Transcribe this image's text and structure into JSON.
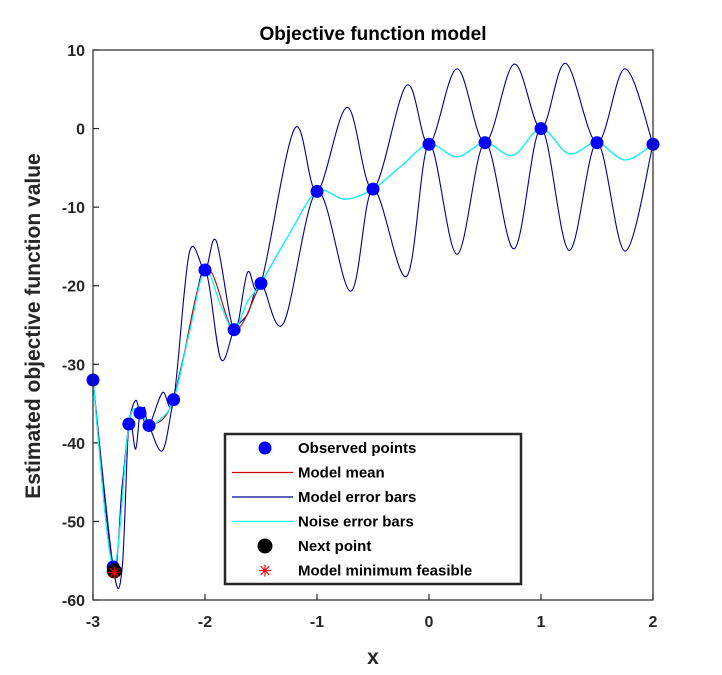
{
  "chart_data": {
    "type": "line",
    "title": "Objective function model",
    "xlabel": "x",
    "ylabel": "Estimated objective function value",
    "xlim": [
      -3,
      2
    ],
    "ylim": [
      -60,
      10
    ],
    "xticks": [
      -3,
      -2,
      -1,
      0,
      1,
      2
    ],
    "yticks": [
      -60,
      -50,
      -40,
      -30,
      -20,
      -10,
      0,
      10
    ],
    "legend_position": "bottom-center",
    "colors": {
      "observed": "#0000ff",
      "model_mean": "#c00000",
      "model_error": "#00008b",
      "noise_error": "#00ffff",
      "next_point": "#000000",
      "model_min": "#ff0000"
    },
    "legend": [
      {
        "label": "Observed points",
        "marker": "dot"
      },
      {
        "label": "Model mean",
        "marker": "line-mean"
      },
      {
        "label": "Model error bars",
        "marker": "line-error"
      },
      {
        "label": "Noise error bars",
        "marker": "line-noise"
      },
      {
        "label": "Next point",
        "marker": "black-dot"
      },
      {
        "label": "Model minimum feasible",
        "marker": "star"
      }
    ],
    "observed_points": {
      "x": [
        -3,
        -2.82,
        -2.68,
        -2.58,
        -2.5,
        -2.28,
        -2.0,
        -1.74,
        -1.5,
        -1.0,
        -0.5,
        0,
        0.5,
        1.0,
        1.5,
        2.0
      ],
      "y": [
        -32,
        -55.8,
        -37.6,
        -36.2,
        -37.8,
        -34.5,
        -18,
        -25.6,
        -19.7,
        -8,
        -7.7,
        -2,
        -1.8,
        0,
        -1.8,
        -2
      ]
    },
    "model_mean": {
      "x": [
        -3,
        -2.82,
        -2.68,
        -2.58,
        -2.5,
        -2.28,
        -2.0,
        -1.74,
        -1.5,
        -1.25,
        -1.0,
        -0.75,
        -0.5,
        -0.25,
        0,
        0.25,
        0.5,
        0.75,
        1.0,
        1.25,
        1.5,
        1.75,
        2.0
      ],
      "y": [
        -32,
        -55.8,
        -37.6,
        -36.2,
        -37.8,
        -34.5,
        -18,
        -25.6,
        -19.7,
        -13.5,
        -8,
        -9,
        -7.7,
        -4.8,
        -2,
        -3.6,
        -1.8,
        -3.4,
        0,
        -3.2,
        -1.8,
        -4,
        -2
      ]
    },
    "model_error_upper": {
      "x": [
        -3,
        -2.82,
        -2.74,
        -2.68,
        -2.62,
        -2.58,
        -2.54,
        -2.5,
        -2.38,
        -2.28,
        -2.14,
        -2.0,
        -1.9,
        -1.74,
        -1.62,
        -1.5,
        -1.2,
        -1.0,
        -0.73,
        -0.5,
        -0.2,
        0,
        0.25,
        0.5,
        0.76,
        1.0,
        1.22,
        1.5,
        1.75,
        2.0
      ],
      "y": [
        -32,
        -55.8,
        -45.5,
        -37.6,
        -34.6,
        -36.2,
        -35.5,
        -37.8,
        -33.6,
        -34.5,
        -15.8,
        -18,
        -14.3,
        -25.6,
        -18.3,
        -19.7,
        0,
        -8,
        2.7,
        -7.7,
        5.5,
        -2,
        7.6,
        -1.8,
        8.2,
        0,
        8.3,
        -1.8,
        7.6,
        -2
      ]
    },
    "model_error_lower": {
      "x": [
        -3,
        -2.82,
        -2.74,
        -2.68,
        -2.62,
        -2.58,
        -2.54,
        -2.5,
        -2.38,
        -2.28,
        -2.14,
        -2.0,
        -1.86,
        -1.74,
        -1.62,
        -1.5,
        -1.3,
        -1.0,
        -0.7,
        -0.5,
        -0.2,
        0,
        0.25,
        0.5,
        0.76,
        1.0,
        1.25,
        1.5,
        1.75,
        2.0
      ],
      "y": [
        -32,
        -55.8,
        -56,
        -37.6,
        -40.8,
        -36.2,
        -37,
        -37.8,
        -41,
        -34.5,
        -26,
        -18,
        -29.3,
        -25.6,
        -23.6,
        -19.7,
        -24.8,
        -8,
        -20.7,
        -7.7,
        -18.8,
        -2,
        -16,
        -1.8,
        -15.3,
        0,
        -15.5,
        -1.8,
        -15.6,
        -2
      ]
    },
    "noise_error": {
      "x": [
        -3,
        -2.82,
        -2.68,
        -2.58,
        -2.5,
        -2.4,
        -2.28,
        -2.14,
        -2.0,
        -1.86,
        -1.74,
        -1.62,
        -1.5,
        -1.25,
        -1.0,
        -0.75,
        -0.5,
        -0.25,
        0,
        0.25,
        0.5,
        0.75,
        1.0,
        1.25,
        1.5,
        1.75,
        2.0
      ],
      "y": [
        -32,
        -55.8,
        -37.6,
        -36.2,
        -37.8,
        -37,
        -34.5,
        -26,
        -18,
        -22.5,
        -25.6,
        -22,
        -19.7,
        -13.5,
        -8,
        -9,
        -7.7,
        -4.8,
        -2,
        -3.6,
        -1.8,
        -3.4,
        0,
        -3.2,
        -1.8,
        -4,
        -2
      ]
    },
    "next_point": {
      "x": -2.81,
      "y": -56.3
    },
    "model_minimum_feasible": {
      "x": -2.81,
      "y": -56.5
    }
  }
}
